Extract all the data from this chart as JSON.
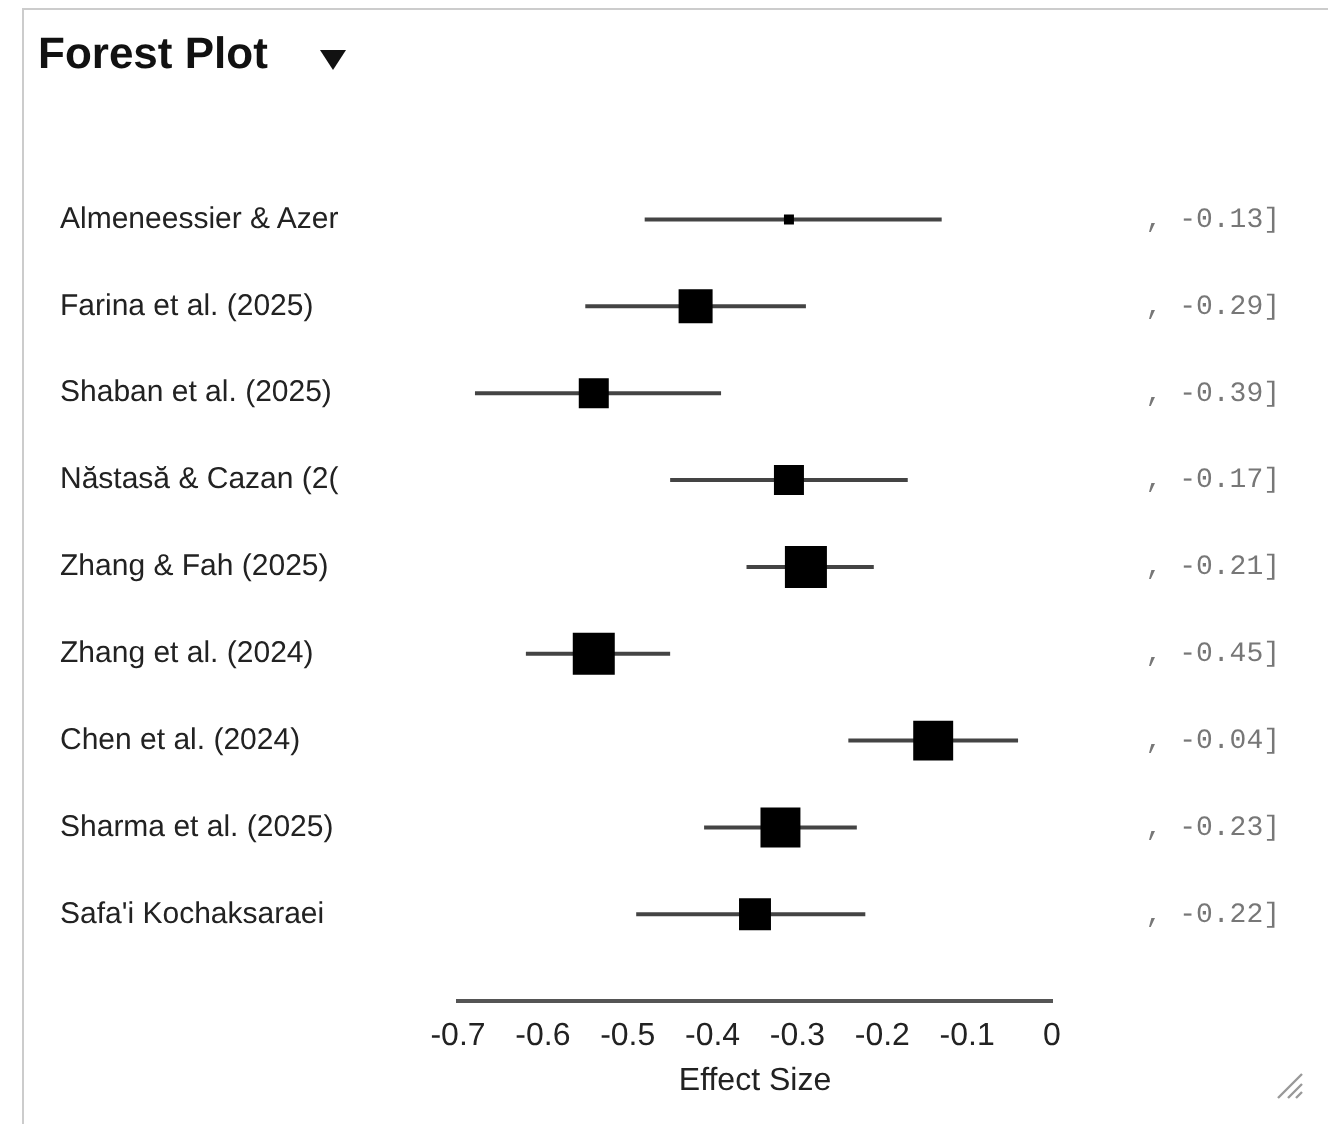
{
  "chart_data": {
    "type": "bubble",
    "title": "Forest Plot",
    "xlabel": "Effect Size",
    "orientation": "horizontal",
    "marker": "square",
    "legend": false,
    "grid": false,
    "categories": [
      "Almeneessier & Azer",
      "Farina et al. (2025)",
      "Shaban et al. (2025)",
      "Năstasă & Cazan (2(",
      "Zhang & Fah (2025)",
      "Zhang et al. (2024)",
      "Chen et al. (2024)",
      "Sharma et al. (2025)",
      "Safa'i Kochaksaraei"
    ],
    "values": [
      -0.31,
      -0.42,
      -0.54,
      -0.31,
      -0.29,
      -0.54,
      -0.14,
      -0.32,
      -0.35
    ],
    "sizes": [
      0.04,
      0.64,
      0.49,
      0.49,
      1,
      1,
      0.9,
      0.9,
      0.56
    ],
    "errors": [
      [
        -0.48,
        -0.13
      ],
      [
        -0.55,
        -0.29
      ],
      [
        -0.68,
        -0.39
      ],
      [
        -0.45,
        -0.17
      ],
      [
        -0.36,
        -0.21
      ],
      [
        -0.62,
        -0.45
      ],
      [
        -0.24,
        -0.04
      ],
      [
        -0.41,
        -0.23
      ],
      [
        -0.49,
        -0.22
      ]
    ],
    "annotations": [
      ", -0.13]",
      ", -0.29]",
      ", -0.39]",
      ", -0.17]",
      ", -0.21]",
      ", -0.45]",
      ", -0.04]",
      ", -0.23]",
      ", -0.22]"
    ],
    "color": "#000000",
    "xlim": [
      -0.7,
      0
    ],
    "xticks": [
      -0.7,
      -0.6,
      -0.5,
      -0.4,
      -0.3,
      -0.2,
      -0.1,
      0
    ]
  }
}
